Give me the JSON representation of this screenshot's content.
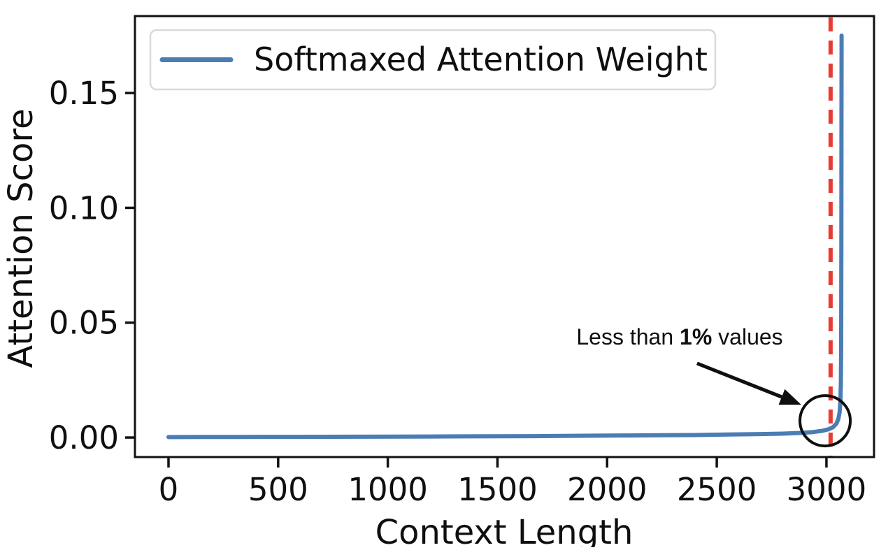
{
  "chart_data": {
    "type": "line",
    "title": "",
    "xlabel": "Context Length",
    "ylabel": "Attention Score",
    "xlim": [
      -153,
      3217
    ],
    "ylim": [
      -0.0085,
      0.1835
    ],
    "x_ticks": [
      0,
      500,
      1000,
      1500,
      2000,
      2500,
      3000
    ],
    "x_tick_labels": [
      "0",
      "500",
      "1000",
      "1500",
      "2000",
      "2500",
      "3000"
    ],
    "y_ticks": [
      0,
      0.05,
      0.1,
      0.15
    ],
    "y_tick_labels": [
      "0.00",
      "0.05",
      "0.10",
      "0.15"
    ],
    "grid": false,
    "legend": {
      "position": "upper left",
      "entries": [
        {
          "label": "Softmaxed Attention Weight",
          "color": "#4b7db4"
        }
      ]
    },
    "series": [
      {
        "name": "Softmaxed Attention Weight",
        "color": "#4b7db4",
        "points": [
          [
            0,
            0.0002
          ],
          [
            150,
            0.00022
          ],
          [
            300,
            0.00025
          ],
          [
            450,
            0.00028
          ],
          [
            600,
            0.0003
          ],
          [
            750,
            0.00033
          ],
          [
            900,
            0.00036
          ],
          [
            1050,
            0.0004
          ],
          [
            1200,
            0.00045
          ],
          [
            1350,
            0.0005
          ],
          [
            1500,
            0.00055
          ],
          [
            1650,
            0.0006
          ],
          [
            1800,
            0.0007
          ],
          [
            1950,
            0.0008
          ],
          [
            2100,
            0.0009
          ],
          [
            2250,
            0.001
          ],
          [
            2400,
            0.0011
          ],
          [
            2550,
            0.0013
          ],
          [
            2700,
            0.0015
          ],
          [
            2800,
            0.0017
          ],
          [
            2880,
            0.002
          ],
          [
            2940,
            0.0024
          ],
          [
            2980,
            0.0029
          ],
          [
            3010,
            0.0036
          ],
          [
            3030,
            0.0045
          ],
          [
            3045,
            0.006
          ],
          [
            3054,
            0.008
          ],
          [
            3060,
            0.011
          ],
          [
            3064,
            0.016
          ],
          [
            3066,
            0.024
          ],
          [
            3067,
            0.04
          ],
          [
            3068,
            0.09
          ],
          [
            3068.5,
            0.13
          ],
          [
            3069,
            0.175
          ]
        ]
      }
    ],
    "peak_value": 0.175,
    "vline": {
      "x": 3019,
      "color": "#e63c32",
      "style": "dashed"
    },
    "annotation": {
      "text_prefix": "Less than ",
      "text_bold": "1%",
      "text_suffix": " values",
      "text_xy": [
        1860,
        0.0405
      ],
      "arrow_start_xy": [
        2410,
        0.0323
      ],
      "arrow_end_xy": [
        2885,
        0.0143
      ],
      "circle_center_xy": [
        2994,
        0.0073
      ],
      "circle_radius_px": 36,
      "color": "#0f0f0f"
    },
    "colors": {
      "spine": "#111111",
      "legend_border": "#d9d9d9",
      "text": "#0f0f0f"
    }
  }
}
